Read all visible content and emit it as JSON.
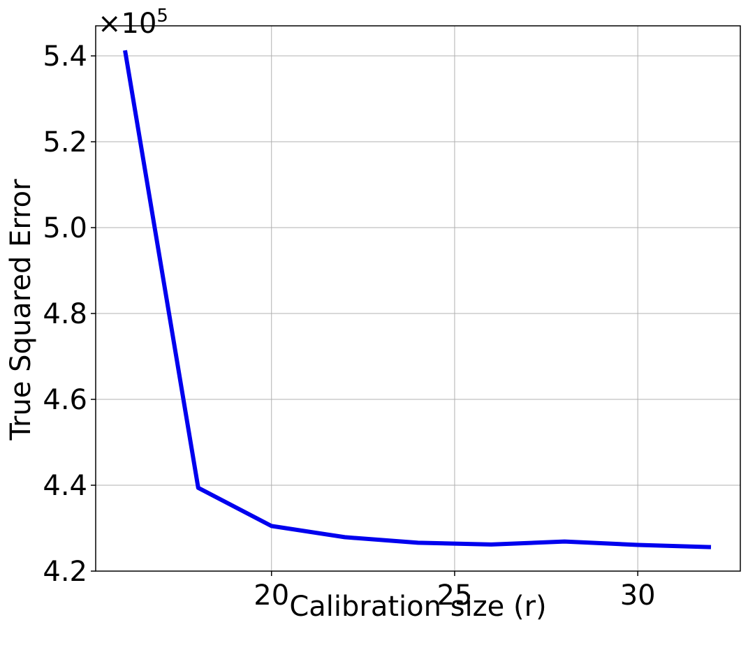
{
  "chart_data": {
    "type": "line",
    "title": "",
    "xlabel": "Calibration size (r)",
    "ylabel": "True Squared Error",
    "y_offset_prefix": "×10",
    "y_offset_exponent": "5",
    "xlim": [
      15.2,
      32.8
    ],
    "ylim": [
      4.2,
      5.47
    ],
    "x_ticks": [
      20,
      25,
      30
    ],
    "x_tick_labels": [
      "20",
      "25",
      "30"
    ],
    "y_ticks": [
      4.2,
      4.4,
      4.6,
      4.8,
      5.0,
      5.2,
      5.4
    ],
    "y_tick_labels": [
      "4.2",
      "4.4",
      "4.6",
      "4.8",
      "5.0",
      "5.2",
      "5.4"
    ],
    "grid": true,
    "series": [
      {
        "color": "#0000ee",
        "x": [
          16,
          18,
          20,
          22,
          24,
          26,
          28,
          30,
          32
        ],
        "y": [
          5.413,
          4.394,
          4.305,
          4.279,
          4.266,
          4.262,
          4.269,
          4.261,
          4.256
        ]
      }
    ]
  }
}
